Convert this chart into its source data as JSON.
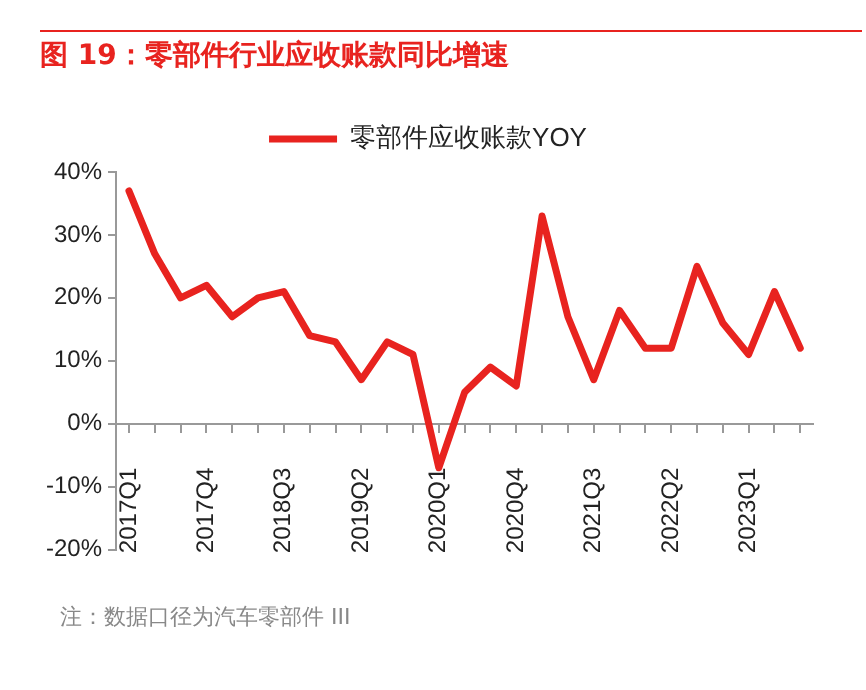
{
  "chart_data": {
    "type": "line",
    "title": "图 19：零部件行业应收账款同比增速",
    "categories": [
      "2017Q1",
      null,
      null,
      "2017Q4",
      null,
      null,
      "2018Q3",
      null,
      null,
      "2019Q2",
      null,
      null,
      "2020Q1",
      null,
      null,
      "2020Q4",
      null,
      null,
      "2021Q3",
      null,
      null,
      "2022Q2",
      null,
      null,
      "2023Q1",
      null,
      null
    ],
    "series": [
      {
        "name": "零部件应收账款YOY",
        "color": "#e8231f",
        "values": [
          37,
          27,
          20,
          22,
          17,
          20,
          21,
          14,
          13,
          7,
          13,
          11,
          -7,
          5,
          9,
          6,
          33,
          17,
          7,
          18,
          12,
          12,
          25,
          16,
          11,
          21,
          12
        ]
      }
    ],
    "ylim": [
      -20,
      40
    ],
    "yticks": [
      {
        "value": -20,
        "label": "-20%"
      },
      {
        "value": -10,
        "label": "-10%"
      },
      {
        "value": 0,
        "label": "0%"
      },
      {
        "value": 10,
        "label": "10%"
      },
      {
        "value": 20,
        "label": "20%"
      },
      {
        "value": 30,
        "label": "30%"
      },
      {
        "value": 40,
        "label": "40%"
      }
    ],
    "grid": false,
    "legend": "top",
    "marker": "none",
    "line_style": "solid",
    "annotations": [
      "注：数据口径为汽车零部件 III"
    ]
  }
}
